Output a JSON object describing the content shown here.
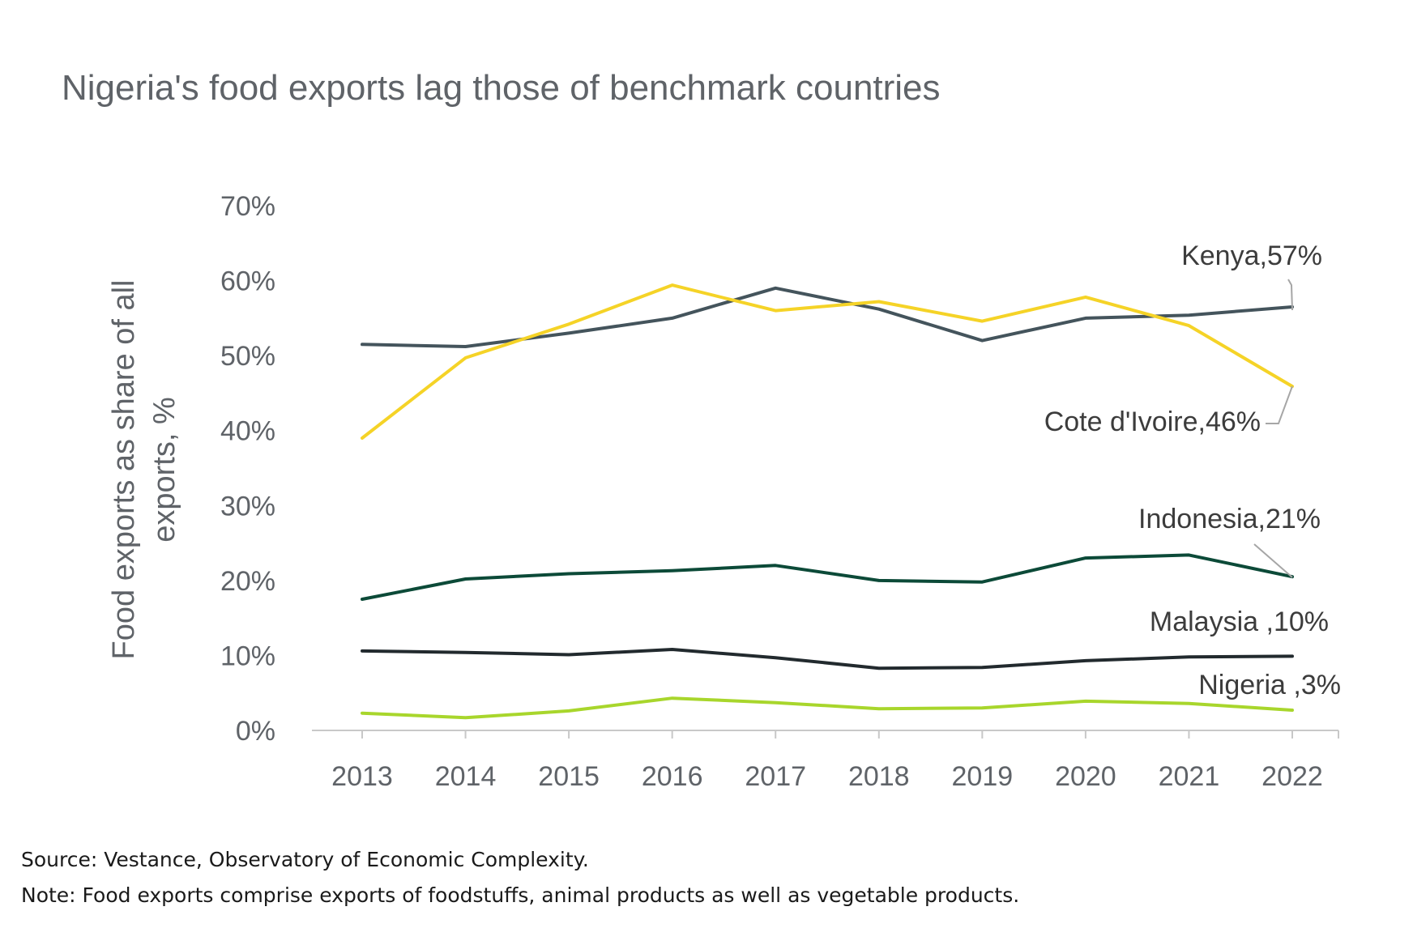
{
  "title": "Nigeria's food exports lag those of benchmark countries",
  "source": "Source: Vestance, Observatory of Economic Complexity.",
  "note": "Note: Food exports comprise exports of foodstuffs, animal products as well as vegetable products.",
  "chart_data": {
    "type": "line",
    "title": "Nigeria's food exports lag those of benchmark countries",
    "xlabel": "",
    "ylabel": "Food exports as share of all exports, %",
    "ylabel_lines": [
      "Food exports as share of all",
      "exports, %"
    ],
    "categories": [
      "2013",
      "2014",
      "2015",
      "2016",
      "2017",
      "2018",
      "2019",
      "2020",
      "2021",
      "2022"
    ],
    "ylim": [
      0,
      70
    ],
    "yticks": [
      0,
      10,
      20,
      30,
      40,
      50,
      60,
      70
    ],
    "ytick_labels": [
      "0%",
      "10%",
      "20%",
      "30%",
      "40%",
      "50%",
      "60%",
      "70%"
    ],
    "grid": false,
    "series": [
      {
        "name": "Kenya",
        "label": "Kenya",
        "end_label": "57%",
        "color": "#44545c",
        "values": [
          51.5,
          51.2,
          53.0,
          55.0,
          59.0,
          56.2,
          52.0,
          55.0,
          55.4,
          56.5
        ]
      },
      {
        "name": "Cote d'Ivoire",
        "label": "Cote d'Ivoire",
        "end_label": "46%",
        "color": "#f5d327",
        "values": [
          39.0,
          49.7,
          54.2,
          59.4,
          56.0,
          57.2,
          54.6,
          57.8,
          54.0,
          45.9
        ]
      },
      {
        "name": "Indonesia",
        "label": "Indonesia",
        "end_label": "21%",
        "color": "#0c4a38",
        "values": [
          17.5,
          20.2,
          20.9,
          21.3,
          22.0,
          20.0,
          19.8,
          23.0,
          23.4,
          20.5
        ]
      },
      {
        "name": "Malaysia",
        "label": "Malaysia ",
        "end_label": "10%",
        "color": "#222a2e",
        "values": [
          10.6,
          10.4,
          10.1,
          10.8,
          9.7,
          8.3,
          8.4,
          9.3,
          9.8,
          9.9
        ]
      },
      {
        "name": "Nigeria",
        "label": "Nigeria ",
        "end_label": "3%",
        "color": "#a8d62c",
        "values": [
          2.3,
          1.7,
          2.6,
          4.3,
          3.7,
          2.9,
          3.0,
          3.9,
          3.6,
          2.7
        ]
      }
    ]
  }
}
